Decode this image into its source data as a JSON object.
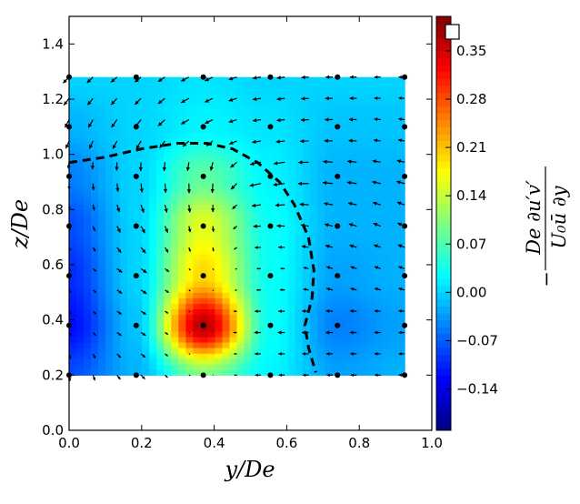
{
  "chart_data": {
    "type": "heatmap",
    "subtype": "filled contour with quiver overlay",
    "colormap": "jet",
    "xlabel": "y/De",
    "ylabel": "z/De",
    "xlim": [
      0.0,
      1.0
    ],
    "ylim": [
      0.0,
      1.5
    ],
    "xticks": [
      "0.0",
      "0.2",
      "0.4",
      "0.6",
      "0.8",
      "1.0"
    ],
    "yticks": [
      "0.0",
      "0.2",
      "0.4",
      "0.6",
      "0.8",
      "1.0",
      "1.2",
      "1.4"
    ],
    "grid": false,
    "colorbar": {
      "range": [
        -0.2,
        0.4
      ],
      "ticks": [
        "-0.14",
        "-0.07",
        "0.00",
        "0.07",
        "0.14",
        "0.21",
        "0.28",
        "0.35"
      ],
      "label": {
        "sign": "−",
        "numerator": "De ∂u′v′",
        "denominator": "U₀ū  ∂y"
      },
      "marker_color": "#ffffff"
    },
    "field": {
      "y": [
        0.0,
        0.185,
        0.37,
        0.555,
        0.74,
        0.925
      ],
      "z": [
        0.2,
        0.38,
        0.56,
        0.74,
        0.92,
        1.1,
        1.28
      ],
      "values": [
        [
          -0.08,
          -0.02,
          0.1,
          0.02,
          -0.03,
          -0.02
        ],
        [
          -0.12,
          -0.01,
          0.37,
          0.03,
          -0.05,
          -0.03
        ],
        [
          -0.1,
          0.0,
          0.2,
          0.03,
          -0.03,
          -0.02
        ],
        [
          -0.08,
          0.0,
          0.16,
          0.03,
          -0.02,
          -0.02
        ],
        [
          -0.05,
          0.0,
          0.08,
          0.02,
          -0.02,
          -0.02
        ],
        [
          -0.02,
          0.0,
          0.02,
          0.01,
          -0.01,
          -0.01
        ],
        [
          0.0,
          0.0,
          0.01,
          0.0,
          0.0,
          0.0
        ]
      ]
    },
    "quiver": {
      "u": [
        [
          0.05,
          0.2,
          0.05,
          -0.3,
          -0.3,
          -0.3
        ],
        [
          0.1,
          0.25,
          0.0,
          -0.35,
          -0.35,
          -0.3
        ],
        [
          0.1,
          0.3,
          0.05,
          -0.2,
          -0.3,
          -0.3
        ],
        [
          0.05,
          0.2,
          0.05,
          -0.4,
          -0.4,
          -0.35
        ],
        [
          0.0,
          0.05,
          0.0,
          -0.6,
          -0.5,
          -0.4
        ],
        [
          -0.2,
          -0.3,
          -0.4,
          -0.4,
          -0.4,
          -0.3
        ],
        [
          -0.3,
          -0.3,
          -0.4,
          -0.4,
          -0.35,
          -0.3
        ]
      ],
      "v": [
        [
          -0.3,
          -0.2,
          0.0,
          0.0,
          0.0,
          0.0
        ],
        [
          -0.15,
          -0.15,
          0.0,
          0.0,
          0.0,
          0.0
        ],
        [
          -0.1,
          -0.2,
          -0.05,
          0.0,
          0.1,
          0.1
        ],
        [
          -0.2,
          -0.35,
          -0.3,
          0.0,
          0.1,
          0.15
        ],
        [
          -0.3,
          -0.45,
          -0.5,
          -0.1,
          0.05,
          0.1
        ],
        [
          -0.4,
          -0.4,
          -0.2,
          -0.05,
          0.0,
          0.05
        ],
        [
          -0.3,
          -0.25,
          -0.2,
          -0.05,
          0.0,
          0.0
        ]
      ]
    },
    "measurement_points": {
      "y": [
        0.0,
        0.185,
        0.37,
        0.555,
        0.74,
        0.925
      ],
      "z": [
        0.2,
        0.38,
        0.56,
        0.74,
        0.92,
        1.1,
        1.28
      ]
    },
    "dashed_boundary": [
      [
        0.0,
        0.97
      ],
      [
        0.1,
        0.99
      ],
      [
        0.2,
        1.02
      ],
      [
        0.3,
        1.04
      ],
      [
        0.38,
        1.04
      ],
      [
        0.45,
        1.02
      ],
      [
        0.52,
        0.97
      ],
      [
        0.58,
        0.9
      ],
      [
        0.62,
        0.82
      ],
      [
        0.66,
        0.7
      ],
      [
        0.675,
        0.58
      ],
      [
        0.67,
        0.48
      ],
      [
        0.65,
        0.38
      ],
      [
        0.66,
        0.3
      ],
      [
        0.68,
        0.21
      ]
    ]
  }
}
